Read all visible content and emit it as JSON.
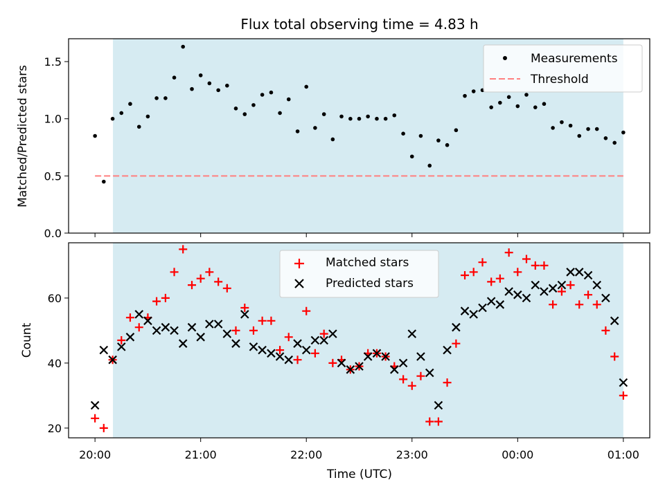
{
  "chart_data": {
    "title": "Flux total observing time = 4.83 h",
    "xlabel": "Time (UTC)",
    "x_unit": "hours after 20:00 UTC",
    "xlim": [
      -0.25,
      5.25
    ],
    "x_ticks": [
      0,
      1,
      2,
      3,
      4,
      5
    ],
    "x_tick_labels": [
      "20:00",
      "21:00",
      "22:00",
      "23:00",
      "00:00",
      "01:00"
    ],
    "shaded_span": [
      0.17,
      5.0
    ],
    "colors": {
      "shade": "#add8e6",
      "matched": "#ff0000",
      "predicted": "#000000",
      "threshold": "#ff7f7f"
    },
    "panels": [
      {
        "type": "scatter",
        "ylabel": "Matched/Predicted stars",
        "ylim": [
          0.0,
          1.7
        ],
        "y_ticks": [
          0.0,
          0.5,
          1.0,
          1.5
        ],
        "y_tick_labels": [
          "0.0",
          "0.5",
          "1.0",
          "1.5"
        ],
        "legend_position": "top-right",
        "legend": [
          "Measurements",
          "Threshold"
        ],
        "threshold": {
          "name": "Threshold",
          "y": 0.5,
          "x": [
            0.0,
            5.0
          ]
        },
        "series": [
          {
            "name": "Measurements",
            "marker": "dot",
            "x": [
              0.0,
              0.083,
              0.167,
              0.25,
              0.333,
              0.417,
              0.5,
              0.583,
              0.667,
              0.75,
              0.833,
              0.917,
              1.0,
              1.083,
              1.167,
              1.25,
              1.333,
              1.417,
              1.5,
              1.583,
              1.667,
              1.75,
              1.833,
              1.917,
              2.0,
              2.083,
              2.167,
              2.25,
              2.333,
              2.417,
              2.5,
              2.583,
              2.667,
              2.75,
              2.833,
              2.917,
              3.0,
              3.083,
              3.167,
              3.25,
              3.333,
              3.417,
              3.5,
              3.583,
              3.667,
              3.75,
              3.833,
              3.917,
              4.0,
              4.083,
              4.167,
              4.25,
              4.333,
              4.417,
              4.5,
              4.583,
              4.667,
              4.75,
              4.833,
              4.917,
              5.0
            ],
            "y": [
              0.85,
              0.45,
              1.0,
              1.05,
              1.13,
              0.93,
              1.02,
              1.18,
              1.18,
              1.36,
              1.63,
              1.26,
              1.38,
              1.31,
              1.25,
              1.29,
              1.09,
              1.04,
              1.12,
              1.21,
              1.23,
              1.05,
              1.17,
              0.89,
              1.28,
              0.92,
              1.04,
              0.82,
              1.02,
              1.0,
              1.0,
              1.02,
              1.0,
              1.0,
              1.03,
              0.87,
              0.67,
              0.85,
              0.59,
              0.81,
              0.77,
              0.9,
              1.2,
              1.24,
              1.25,
              1.1,
              1.14,
              1.19,
              1.11,
              1.21,
              1.1,
              1.13,
              0.92,
              0.97,
              0.94,
              0.85,
              0.91,
              0.91,
              0.83,
              0.79,
              0.88
            ]
          }
        ]
      },
      {
        "type": "scatter",
        "ylabel": "Count",
        "ylim": [
          17,
          77
        ],
        "y_ticks": [
          20,
          40,
          60
        ],
        "y_tick_labels": [
          "20",
          "40",
          "60"
        ],
        "legend_position": "upper-center",
        "legend": [
          "Matched stars",
          "Predicted stars"
        ],
        "series": [
          {
            "name": "Matched stars",
            "marker": "plus",
            "x": [
              0.0,
              0.083,
              0.167,
              0.25,
              0.333,
              0.417,
              0.5,
              0.583,
              0.667,
              0.75,
              0.833,
              0.917,
              1.0,
              1.083,
              1.167,
              1.25,
              1.333,
              1.417,
              1.5,
              1.583,
              1.667,
              1.75,
              1.833,
              1.917,
              2.0,
              2.083,
              2.167,
              2.25,
              2.333,
              2.417,
              2.5,
              2.583,
              2.667,
              2.75,
              2.833,
              2.917,
              3.0,
              3.083,
              3.167,
              3.25,
              3.333,
              3.417,
              3.5,
              3.583,
              3.667,
              3.75,
              3.833,
              3.917,
              4.0,
              4.083,
              4.167,
              4.25,
              4.333,
              4.417,
              4.5,
              4.583,
              4.667,
              4.75,
              4.833,
              4.917,
              5.0
            ],
            "y": [
              23,
              20,
              41,
              47,
              54,
              51,
              54,
              59,
              60,
              68,
              75,
              64,
              66,
              68,
              65,
              63,
              50,
              57,
              50,
              53,
              53,
              44,
              48,
              41,
              56,
              43,
              49,
              40,
              41,
              38,
              39,
              43,
              43,
              42,
              39,
              35,
              33,
              36,
              22,
              22,
              34,
              46,
              67,
              68,
              71,
              65,
              66,
              74,
              68,
              72,
              70,
              70,
              58,
              62,
              64,
              58,
              61,
              58,
              50,
              42,
              30
            ]
          },
          {
            "name": "Predicted stars",
            "marker": "x",
            "x": [
              0.0,
              0.083,
              0.167,
              0.25,
              0.333,
              0.417,
              0.5,
              0.583,
              0.667,
              0.75,
              0.833,
              0.917,
              1.0,
              1.083,
              1.167,
              1.25,
              1.333,
              1.417,
              1.5,
              1.583,
              1.667,
              1.75,
              1.833,
              1.917,
              2.0,
              2.083,
              2.167,
              2.25,
              2.333,
              2.417,
              2.5,
              2.583,
              2.667,
              2.75,
              2.833,
              2.917,
              3.0,
              3.083,
              3.167,
              3.25,
              3.333,
              3.417,
              3.5,
              3.583,
              3.667,
              3.75,
              3.833,
              3.917,
              4.0,
              4.083,
              4.167,
              4.25,
              4.333,
              4.417,
              4.5,
              4.583,
              4.667,
              4.75,
              4.833,
              4.917,
              5.0
            ],
            "y": [
              27,
              44,
              41,
              45,
              48,
              55,
              53,
              50,
              51,
              50,
              46,
              51,
              48,
              52,
              52,
              49,
              46,
              55,
              45,
              44,
              43,
              42,
              41,
              46,
              44,
              47,
              47,
              49,
              40,
              38,
              39,
              42,
              43,
              42,
              38,
              40,
              49,
              42,
              37,
              27,
              44,
              51,
              56,
              55,
              57,
              59,
              58,
              62,
              61,
              60,
              64,
              62,
              63,
              64,
              68,
              68,
              67,
              64,
              60,
              53,
              34
            ]
          }
        ]
      }
    ]
  }
}
